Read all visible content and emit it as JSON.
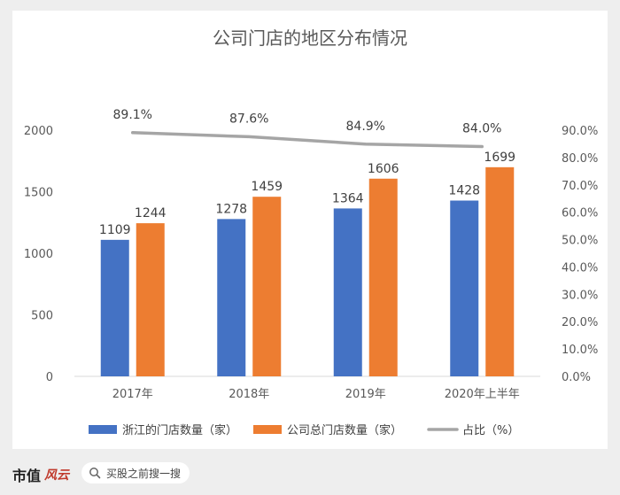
{
  "chart_data": {
    "type": "bar",
    "title": "公司门店的地区分布情况",
    "categories": [
      "2017年",
      "2018年",
      "2019年",
      "2020年上半年"
    ],
    "series": [
      {
        "name": "浙江的门店数量（家）",
        "kind": "bar",
        "axis": "left",
        "color": "#4472C4",
        "values": [
          1109,
          1278,
          1364,
          1428
        ]
      },
      {
        "name": "公司总门店数量（家）",
        "kind": "bar",
        "axis": "left",
        "color": "#ED7D31",
        "values": [
          1244,
          1459,
          1606,
          1699
        ]
      },
      {
        "name": "占比（%）",
        "kind": "line",
        "axis": "right",
        "color": "#A5A5A5",
        "values": [
          89.1,
          87.6,
          84.9,
          84.0
        ],
        "labels": [
          "89.1%",
          "87.6%",
          "84.9%",
          "84.0%"
        ]
      }
    ],
    "y_left": {
      "min": 0,
      "max": 2000,
      "ticks": [
        "0",
        "500",
        "1000",
        "1500",
        "2000"
      ]
    },
    "y_right": {
      "min": 0,
      "max": 90,
      "ticks": [
        "0.0%",
        "10.0%",
        "20.0%",
        "30.0%",
        "40.0%",
        "50.0%",
        "60.0%",
        "70.0%",
        "80.0%",
        "90.0%"
      ]
    },
    "legend_position": "bottom",
    "grid": false
  },
  "footer": {
    "brand": "市值",
    "brand_mark": "风云",
    "search_placeholder": "买股之前搜一搜"
  }
}
